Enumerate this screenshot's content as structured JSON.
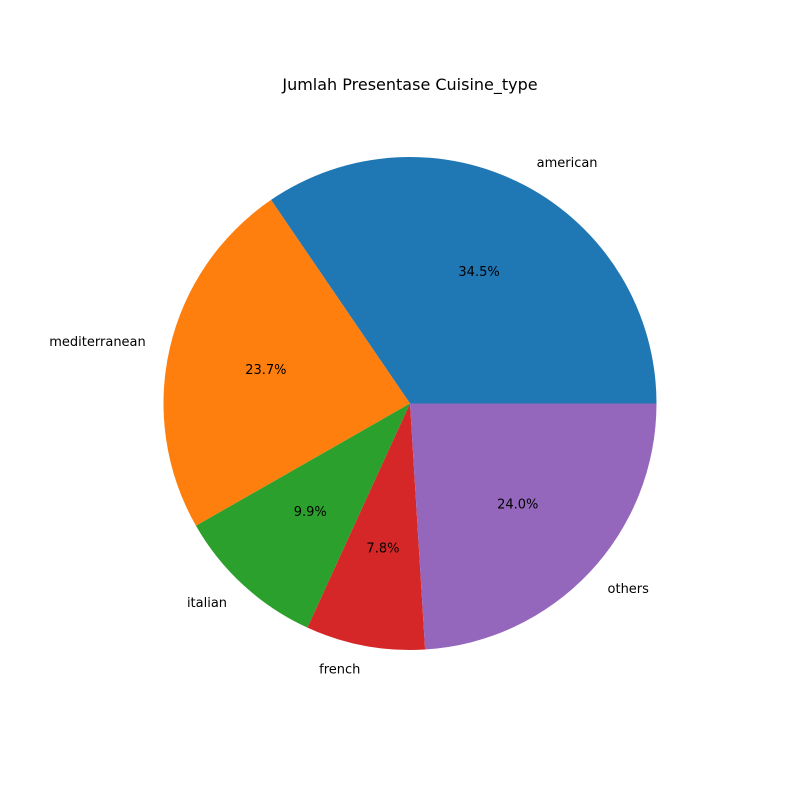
{
  "chart_data": {
    "type": "pie",
    "title": "Jumlah Presentase Cuisine_type",
    "categories": [
      "american",
      "mediterranean",
      "italian",
      "french",
      "others"
    ],
    "values": [
      34.5,
      23.7,
      9.9,
      7.8,
      24.0
    ],
    "value_labels": [
      "34.5%",
      "23.7%",
      "9.9%",
      "7.8%",
      "24.0%"
    ],
    "colors": [
      "#1f77b4",
      "#ff7f0e",
      "#2ca02c",
      "#d62728",
      "#9467bd"
    ],
    "start_angle_deg": 0,
    "direction": "counterclockwise",
    "legend": "none"
  }
}
